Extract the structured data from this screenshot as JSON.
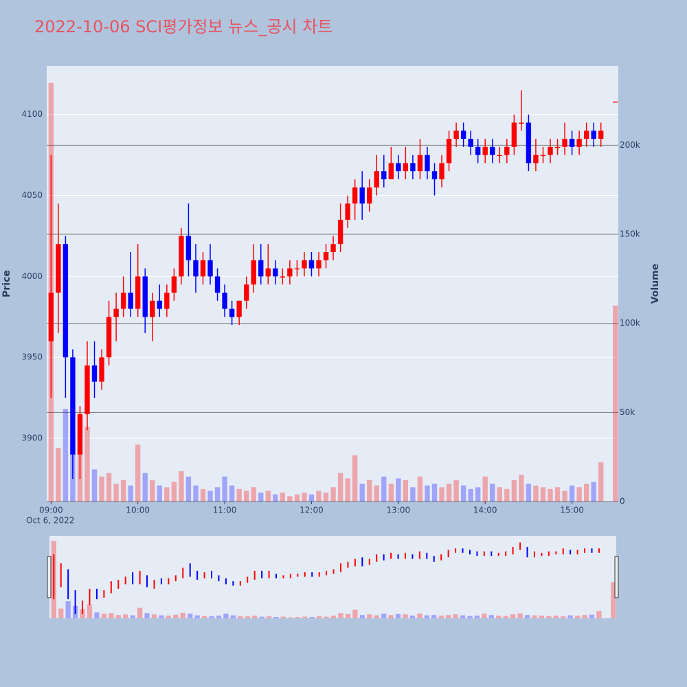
{
  "chart_data": {
    "type": "candlestick",
    "title": "2022-10-06 SCI평가정보 뉴스_공시 차트",
    "y_title": "Price",
    "y2_title": "Volume",
    "x_date_label": "Oct 6, 2022",
    "increasing_color": "#ff0000",
    "decreasing_color": "#0000ff",
    "x": [
      "09:00",
      "09:05",
      "09:10",
      "09:15",
      "09:20",
      "09:25",
      "09:30",
      "09:35",
      "09:40",
      "09:45",
      "09:50",
      "09:55",
      "10:00",
      "10:05",
      "10:10",
      "10:15",
      "10:20",
      "10:25",
      "10:30",
      "10:35",
      "10:40",
      "10:45",
      "10:50",
      "10:55",
      "11:00",
      "11:05",
      "11:10",
      "11:15",
      "11:20",
      "11:25",
      "11:30",
      "11:35",
      "11:40",
      "11:45",
      "11:50",
      "11:55",
      "12:00",
      "12:05",
      "12:10",
      "12:15",
      "12:20",
      "12:25",
      "12:30",
      "12:35",
      "12:40",
      "12:45",
      "12:50",
      "12:55",
      "13:00",
      "13:05",
      "13:10",
      "13:15",
      "13:20",
      "13:25",
      "13:30",
      "13:35",
      "13:40",
      "13:45",
      "13:50",
      "13:55",
      "14:00",
      "14:05",
      "14:10",
      "14:15",
      "14:20",
      "14:25",
      "14:30",
      "14:35",
      "14:40",
      "14:45",
      "14:50",
      "14:55",
      "15:00",
      "15:05",
      "15:10",
      "15:15",
      "15:20",
      "15:30"
    ],
    "open": [
      3960,
      3990,
      4020,
      3950,
      3890,
      3915,
      3945,
      3935,
      3950,
      3975,
      3980,
      3990,
      3980,
      4000,
      3975,
      3985,
      3980,
      3990,
      4000,
      4025,
      4010,
      4000,
      4010,
      4000,
      3990,
      3980,
      3975,
      3985,
      3995,
      4010,
      4000,
      4005,
      4000,
      4000,
      4005,
      4005,
      4010,
      4005,
      4010,
      4015,
      4020,
      4035,
      4045,
      4055,
      4045,
      4055,
      4065,
      4060,
      4070,
      4065,
      4070,
      4065,
      4075,
      4065,
      4060,
      4070,
      4085,
      4090,
      4085,
      4080,
      4075,
      4080,
      4075,
      4075,
      4080,
      4095,
      4095,
      4070,
      4075,
      4075,
      4080,
      4080,
      4085,
      4080,
      4085,
      4090,
      4085,
      4108
    ],
    "high": [
      4075,
      4045,
      4025,
      3955,
      3920,
      3960,
      3960,
      3955,
      3985,
      3990,
      4000,
      4015,
      4020,
      4005,
      3990,
      3995,
      3995,
      4005,
      4030,
      4045,
      4020,
      4015,
      4020,
      4005,
      3995,
      3985,
      3985,
      4000,
      4020,
      4020,
      4020,
      4010,
      4005,
      4010,
      4010,
      4015,
      4015,
      4015,
      4020,
      4025,
      4045,
      4050,
      4060,
      4065,
      4060,
      4075,
      4075,
      4080,
      4075,
      4080,
      4075,
      4085,
      4080,
      4070,
      4075,
      4090,
      4095,
      4095,
      4090,
      4085,
      4085,
      4085,
      4080,
      4085,
      4100,
      4115,
      4100,
      4085,
      4080,
      4085,
      4085,
      4095,
      4090,
      4090,
      4095,
      4095,
      4095,
      4108
    ],
    "low": [
      3925,
      3965,
      3925,
      3875,
      3875,
      3905,
      3925,
      3930,
      3945,
      3960,
      3975,
      3975,
      3975,
      3965,
      3960,
      3975,
      3975,
      3985,
      3995,
      4000,
      3990,
      3995,
      3995,
      3985,
      3975,
      3970,
      3970,
      3980,
      3990,
      3995,
      3995,
      3995,
      3995,
      3995,
      4000,
      4000,
      4000,
      4000,
      4005,
      4010,
      4015,
      4030,
      4035,
      4035,
      4040,
      4050,
      4055,
      4060,
      4060,
      4060,
      4060,
      4060,
      4060,
      4050,
      4055,
      4065,
      4080,
      4080,
      4075,
      4070,
      4070,
      4070,
      4070,
      4070,
      4075,
      4090,
      4065,
      4065,
      4070,
      4070,
      4075,
      4075,
      4075,
      4075,
      4080,
      4080,
      4080,
      4108
    ],
    "close": [
      3990,
      4020,
      3950,
      3890,
      3915,
      3945,
      3935,
      3950,
      3975,
      3980,
      3990,
      3980,
      4000,
      3975,
      3985,
      3980,
      3990,
      4000,
      4025,
      4010,
      4000,
      4010,
      4000,
      3990,
      3980,
      3975,
      3985,
      3995,
      4010,
      4000,
      4005,
      4000,
      4000,
      4005,
      4005,
      4010,
      4005,
      4010,
      4015,
      4020,
      4035,
      4045,
      4055,
      4045,
      4055,
      4065,
      4060,
      4070,
      4065,
      4070,
      4065,
      4075,
      4065,
      4060,
      4070,
      4085,
      4090,
      4085,
      4080,
      4075,
      4080,
      4075,
      4075,
      4080,
      4095,
      4095,
      4070,
      4075,
      4075,
      4080,
      4080,
      4085,
      4080,
      4085,
      4090,
      4085,
      4090,
      4108
    ],
    "volume": [
      235000,
      30000,
      52000,
      38000,
      28000,
      42000,
      18000,
      14000,
      16000,
      10000,
      12000,
      9000,
      32000,
      16000,
      12000,
      9000,
      8000,
      11000,
      17000,
      14000,
      9000,
      7000,
      6000,
      8000,
      14000,
      9000,
      7000,
      6000,
      8000,
      5000,
      6000,
      4000,
      5000,
      3000,
      4000,
      5000,
      4000,
      6000,
      5000,
      8000,
      16000,
      13000,
      26000,
      10000,
      12000,
      9000,
      14000,
      10000,
      13000,
      12000,
      8000,
      14000,
      9000,
      10000,
      8000,
      10000,
      12000,
      9000,
      7000,
      8000,
      14000,
      10000,
      8000,
      7000,
      12000,
      15000,
      10000,
      9000,
      8000,
      7000,
      8000,
      6000,
      9000,
      8000,
      10000,
      11000,
      22000,
      110000
    ],
    "xlim": [
      "08:57",
      "15:32"
    ],
    "xticks": [
      "09:00",
      "10:00",
      "11:00",
      "12:00",
      "13:00",
      "14:00",
      "15:00"
    ],
    "ylim": [
      3861,
      4130
    ],
    "yticks": [
      3900,
      3950,
      4000,
      4050,
      4100
    ],
    "y2lim": [
      0,
      244500
    ],
    "y2ticks": [
      0,
      {
        "value": 50000,
        "label": "50k"
      },
      {
        "value": 100000,
        "label": "100k"
      },
      {
        "value": 150000,
        "label": "150k"
      },
      {
        "value": 200000,
        "label": "200k"
      }
    ],
    "grid": true,
    "rangeslider": true
  }
}
